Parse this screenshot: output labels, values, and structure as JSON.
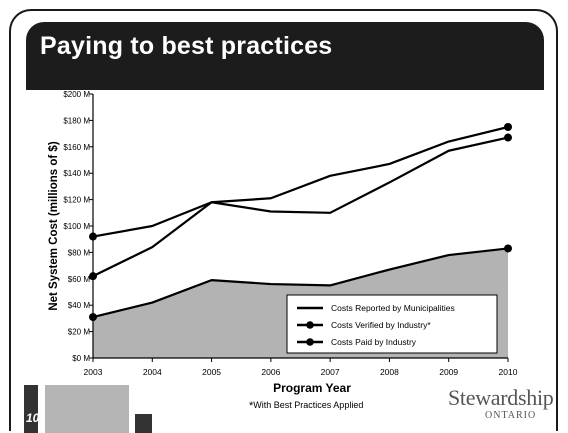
{
  "slide": {
    "title": "Paying to best practices",
    "number": "10",
    "footnote_mark": "*",
    "footnote_text": "With Best Practices Applied",
    "logo_text": "Stewardship",
    "logo_subtext": "ONTARIO"
  },
  "chart_data": {
    "type": "line",
    "title": "",
    "xlabel": "Program Year",
    "ylabel": "Net System Cost (millions of $)",
    "x": [
      2003,
      2004,
      2005,
      2006,
      2007,
      2008,
      2009,
      2010
    ],
    "x_tick_labels": [
      "2003",
      "2004",
      "2005",
      "2006",
      "2007",
      "2008",
      "2009",
      "2010"
    ],
    "ylim": [
      0,
      200
    ],
    "y_ticks": [
      0,
      20,
      40,
      60,
      80,
      100,
      120,
      140,
      160,
      180,
      200
    ],
    "y_tick_labels": [
      "$0 M",
      "$20 M",
      "$40 M",
      "$60 M",
      "$80 M",
      "$100 M",
      "$120 M",
      "$140 M",
      "$160 M",
      "$180 M",
      "$200 M"
    ],
    "grid": false,
    "legend_position": "bottom-right",
    "series": [
      {
        "name": "Costs Reported by Municipalities",
        "values": [
          92,
          100,
          118,
          121,
          138,
          147,
          164,
          175
        ],
        "marker": "endpoints",
        "fill": false,
        "color": "#000000"
      },
      {
        "name": "Costs Verified by Industry*",
        "values": [
          62,
          84,
          118,
          111,
          110,
          133,
          157,
          167
        ],
        "marker": "endpoints",
        "fill": false,
        "color": "#000000"
      },
      {
        "name": "Costs Paid by Industry",
        "values": [
          31,
          42,
          59,
          56,
          55,
          67,
          78,
          83
        ],
        "marker": "endpoints",
        "fill": true,
        "fill_color": "#b3b3b3",
        "color": "#000000"
      }
    ]
  }
}
